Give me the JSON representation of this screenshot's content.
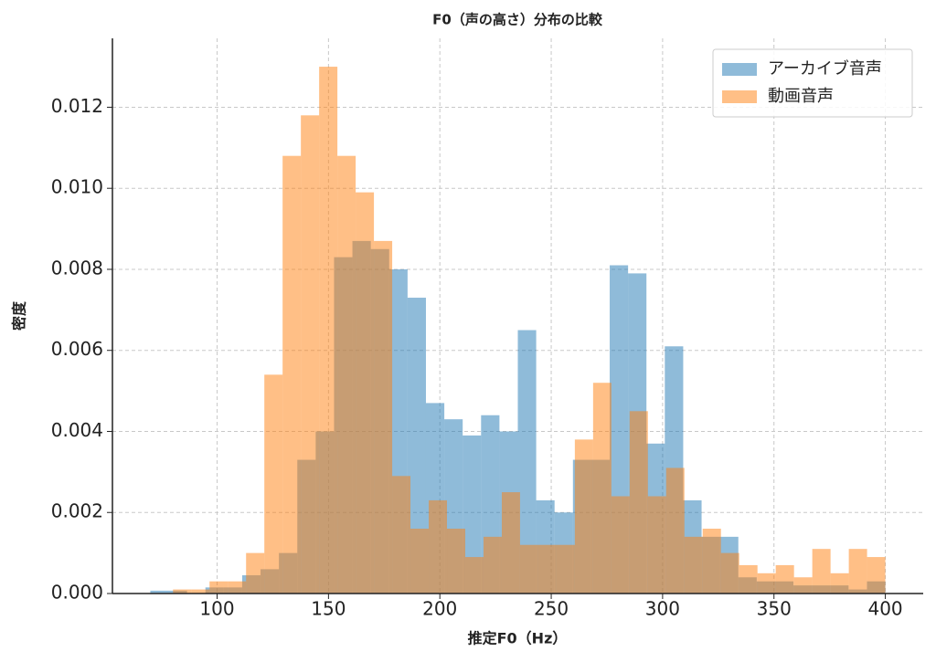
{
  "chart_data": {
    "type": "histogram",
    "title": "F0（声の高さ）分布の比較",
    "x_label": "推定F0（Hz）",
    "y_label": "密度",
    "series": [
      {
        "name": "アーカイブ音声",
        "color": "#1f77b4",
        "opacity": 0.5,
        "bins": [
          70,
          78.25,
          86.5,
          94.75,
          103,
          111.25,
          119.5,
          127.75,
          136,
          144.25,
          152.5,
          160.75,
          169,
          177.25,
          185.5,
          193.75,
          202,
          210.25,
          218.5,
          226.75,
          235,
          243.25,
          251.5,
          259.75,
          268,
          276.25,
          284.5,
          292.75,
          301,
          309.25,
          317.5,
          325.75,
          334,
          342.25,
          350.5,
          358.75,
          367,
          375.25,
          383.5,
          391.75,
          400
        ],
        "values": [
          7e-05,
          7e-05,
          0,
          0.00015,
          0.00015,
          0.00045,
          0.0006,
          0.001,
          0.0033,
          0.004,
          0.0083,
          0.0087,
          0.0085,
          0.008,
          0.0073,
          0.0047,
          0.0043,
          0.0039,
          0.0044,
          0.004,
          0.0065,
          0.0023,
          0.002,
          0.0033,
          0.0033,
          0.0081,
          0.0079,
          0.0037,
          0.0061,
          0.0023,
          0.0014,
          0.0014,
          0.0004,
          0.0003,
          0.0003,
          0.0002,
          0.0002,
          0.0002,
          0.0001,
          0.0003
        ]
      },
      {
        "name": "動画音声",
        "color": "#ff7f0e",
        "opacity": 0.5,
        "bins": [
          72,
          80.2,
          88.4,
          96.6,
          104.8,
          113,
          121.2,
          129.4,
          137.6,
          145.8,
          154,
          162.2,
          170.4,
          178.6,
          186.8,
          195,
          203.2,
          211.4,
          219.6,
          227.8,
          236,
          244.2,
          252.4,
          260.6,
          268.8,
          277,
          285.2,
          293.4,
          301.6,
          309.8,
          318,
          326.2,
          334.4,
          342.6,
          350.8,
          359,
          367.2,
          375.4,
          383.6,
          391.8,
          400
        ],
        "values": [
          0,
          0.0001,
          0.0001,
          0.0003,
          0.0003,
          0.001,
          0.0054,
          0.0108,
          0.0118,
          0.013,
          0.0108,
          0.0099,
          0.0087,
          0.0029,
          0.0016,
          0.0023,
          0.0016,
          0.0009,
          0.0014,
          0.0025,
          0.0012,
          0.0012,
          0.0012,
          0.0038,
          0.0052,
          0.0024,
          0.0045,
          0.0024,
          0.0031,
          0.0014,
          0.0016,
          0.001,
          0.0007,
          0.0005,
          0.0007,
          0.0004,
          0.0011,
          0.0005,
          0.0011,
          0.0009
        ]
      }
    ],
    "xlim": [
      53,
      417
    ],
    "ylim": [
      0,
      0.0137
    ],
    "xticks": [
      100,
      150,
      200,
      250,
      300,
      350,
      400
    ],
    "yticks": [
      {
        "value": 0,
        "label": "0.000"
      },
      0.002,
      0.004,
      0.006,
      0.008,
      {
        "value": 0.01,
        "label": "0.010"
      },
      {
        "value": 0.012,
        "label": "0.012"
      }
    ],
    "grid": true,
    "legend": "upper right"
  }
}
